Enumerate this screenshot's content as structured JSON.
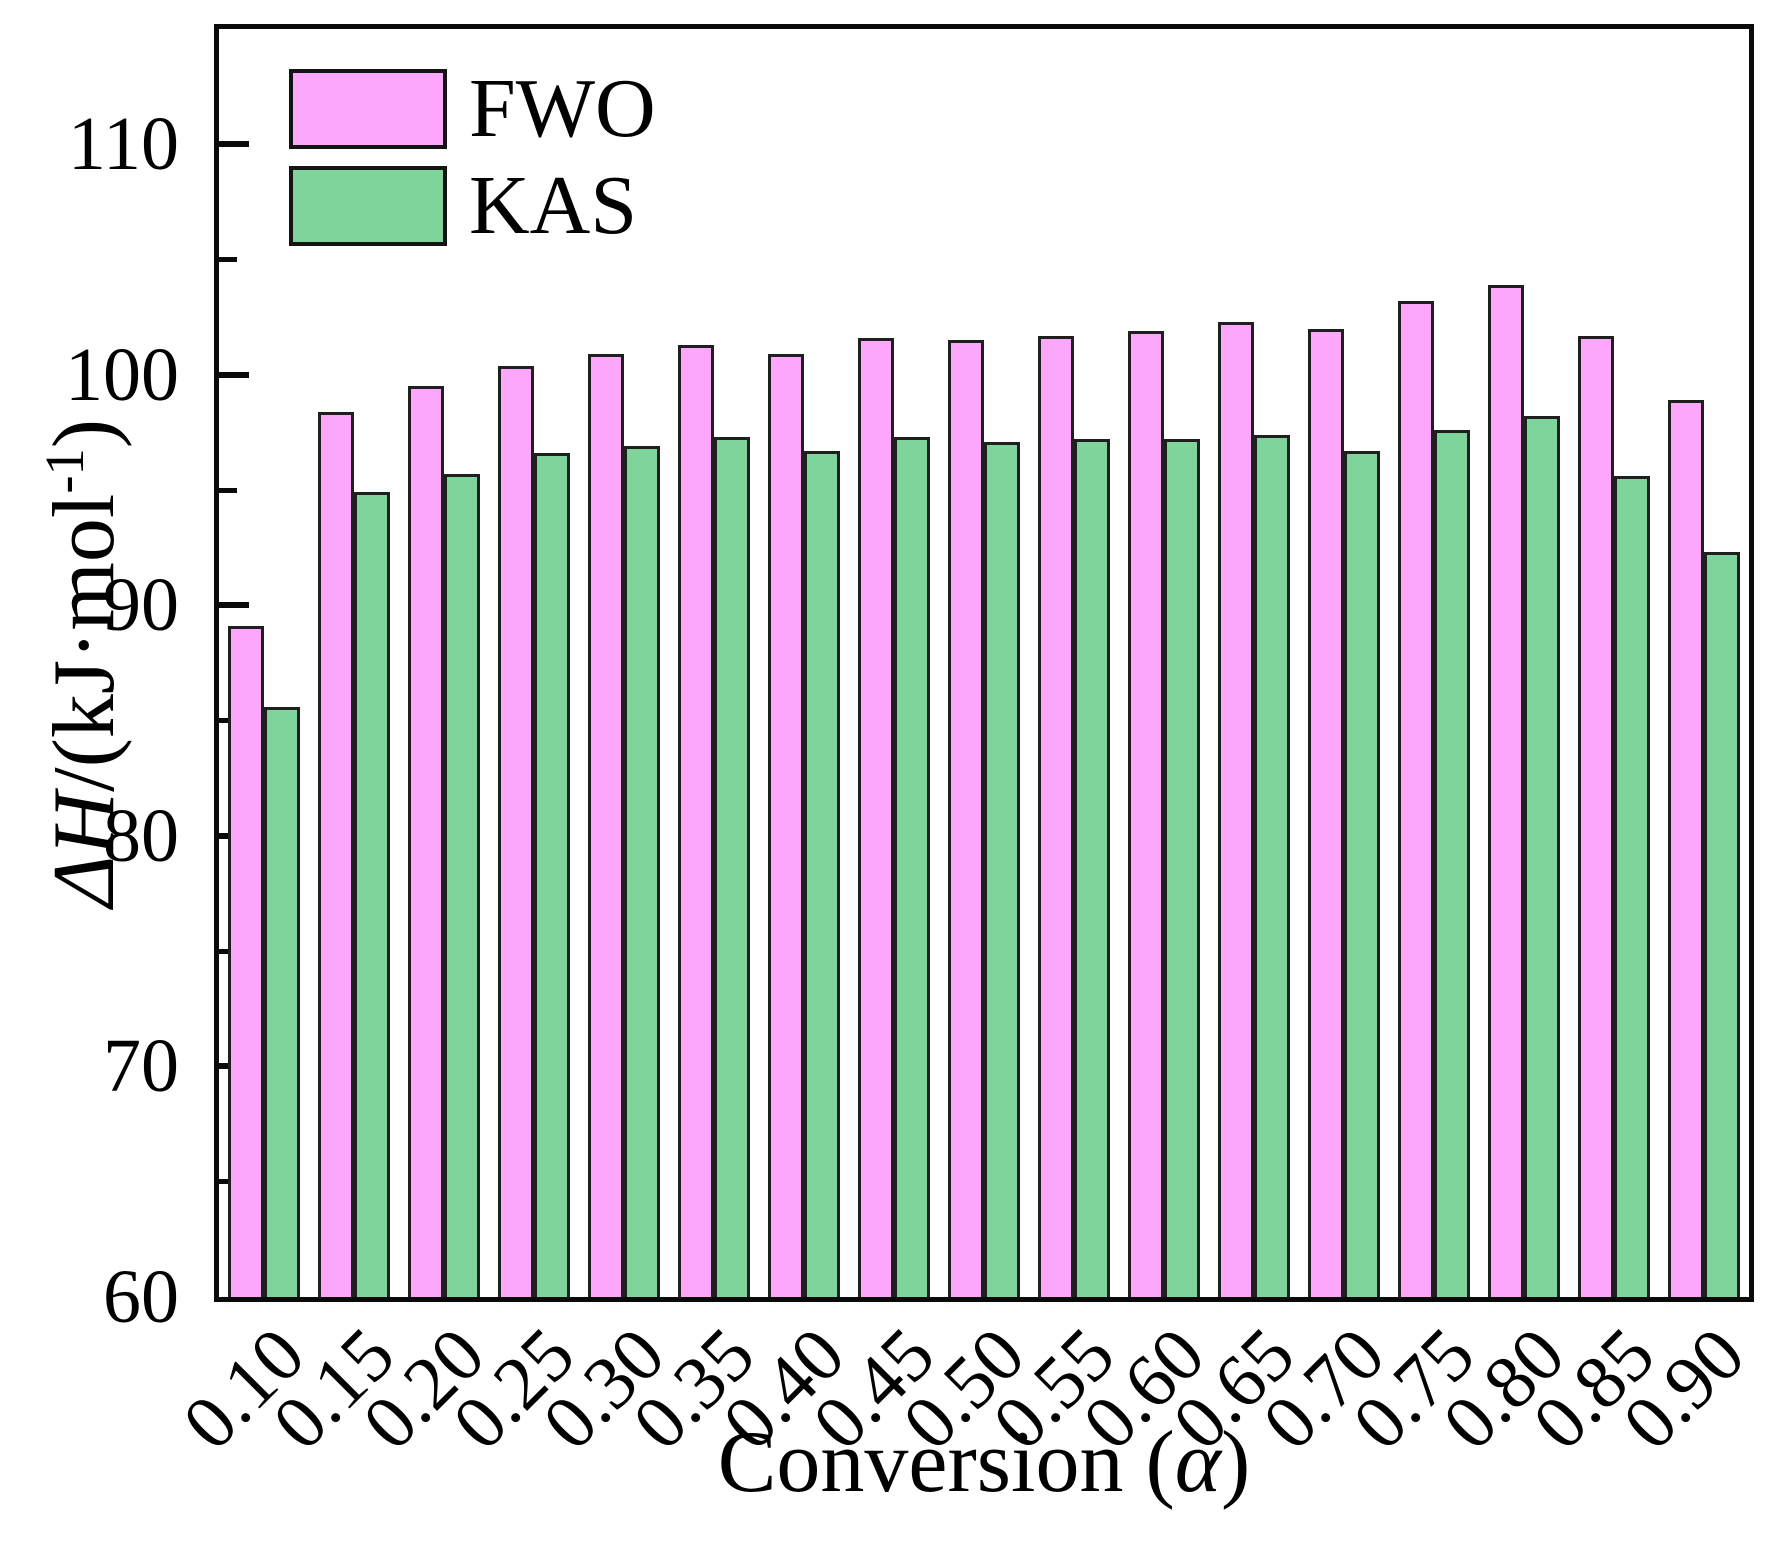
{
  "figure": {
    "xlabel_pre": "Conversion (",
    "xlabel_alpha": "α",
    "xlabel_post": ")",
    "ylabel_italic": "ΔH",
    "ylabel_mid": "/(kJ·mol",
    "ylabel_sup": "-1",
    "ylabel_post": ")"
  },
  "chart_data": {
    "type": "bar",
    "title": "",
    "xlabel": "Conversion (α)",
    "ylabel": "ΔH/(kJ·mol⁻¹)",
    "categories": [
      "0.10",
      "0.15",
      "0.20",
      "0.25",
      "0.30",
      "0.35",
      "0.40",
      "0.45",
      "0.50",
      "0.55",
      "0.60",
      "0.65",
      "0.70",
      "0.75",
      "0.80",
      "0.85",
      "0.90"
    ],
    "series": [
      {
        "name": "FWO",
        "color": "#fca7f9",
        "values": [
          89.1,
          98.4,
          99.5,
          100.4,
          100.9,
          101.3,
          100.9,
          101.6,
          101.5,
          101.7,
          101.9,
          102.3,
          102.0,
          103.2,
          103.9,
          101.7,
          98.9
        ]
      },
      {
        "name": "KAS",
        "color": "#7ed49a",
        "values": [
          85.6,
          94.9,
          95.7,
          96.6,
          96.9,
          97.3,
          96.7,
          97.3,
          97.1,
          97.2,
          97.2,
          97.4,
          96.7,
          97.6,
          98.2,
          95.6,
          92.3
        ]
      }
    ],
    "ylim": [
      60,
      115
    ],
    "yticks_major": [
      60,
      70,
      80,
      90,
      100,
      110
    ],
    "yticks_minor": [
      65,
      75,
      85,
      95,
      105
    ],
    "grid": false,
    "legend_position": "top-left",
    "bar_edge_color": "#1f1f1f",
    "axis_color": "#0a0a0a"
  }
}
